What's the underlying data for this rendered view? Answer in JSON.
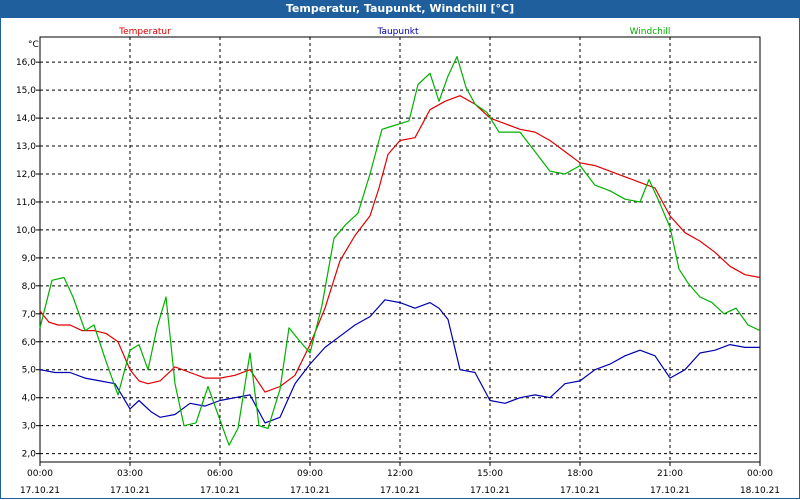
{
  "window": {
    "title": "Temperatur, Taupunkt, Windchill [°C]"
  },
  "chart_data": {
    "type": "line",
    "title": "Temperatur, Taupunkt, Windchill [°C]",
    "ylabel": "°C",
    "ylim": [
      1.7,
      16.9
    ],
    "xlim": [
      0,
      24
    ],
    "yticks": [
      2,
      3,
      4,
      5,
      6,
      7,
      8,
      9,
      10,
      11,
      12,
      13,
      14,
      15,
      16
    ],
    "ytick_labels": [
      "2,0",
      "3,0",
      "4,0",
      "5,0",
      "6,0",
      "7,0",
      "8,0",
      "9,0",
      "10,0",
      "11,0",
      "12,0",
      "13,0",
      "14,0",
      "15,0",
      "16,0"
    ],
    "xticks": [
      0,
      3,
      6,
      9,
      12,
      15,
      18,
      21,
      24
    ],
    "xtick_times": [
      "00:00",
      "03:00",
      "06:00",
      "09:00",
      "12:00",
      "15:00",
      "18:00",
      "21:00",
      "00:00"
    ],
    "xtick_dates": [
      "17.10.21",
      "17.10.21",
      "17.10.21",
      "17.10.21",
      "17.10.21",
      "17.10.21",
      "17.10.21",
      "17.10.21",
      "18.10.21"
    ],
    "grid": true,
    "series": [
      {
        "name": "Temperatur",
        "color": "#e00000",
        "x": [
          0,
          0.3,
          0.6,
          1,
          1.4,
          1.8,
          2.2,
          2.6,
          3,
          3.3,
          3.6,
          4,
          4.5,
          5,
          5.5,
          6,
          6.5,
          7,
          7.5,
          8,
          8.5,
          9,
          9.5,
          10,
          10.5,
          11,
          11.3,
          11.6,
          12,
          12.5,
          13,
          13.5,
          14,
          14.5,
          15,
          15.5,
          16,
          16.5,
          17,
          17.5,
          18,
          18.5,
          19,
          19.5,
          20,
          20.5,
          21,
          21.5,
          22,
          22.5,
          23,
          23.5,
          24
        ],
        "values": [
          7.1,
          6.7,
          6.6,
          6.6,
          6.4,
          6.4,
          6.3,
          6.0,
          5.0,
          4.6,
          4.5,
          4.6,
          5.1,
          4.9,
          4.7,
          4.7,
          4.8,
          5.0,
          4.2,
          4.4,
          4.8,
          5.9,
          7.2,
          8.9,
          9.8,
          10.5,
          11.5,
          12.7,
          13.2,
          13.3,
          14.3,
          14.6,
          14.8,
          14.5,
          14.0,
          13.8,
          13.6,
          13.5,
          13.2,
          12.8,
          12.4,
          12.3,
          12.1,
          11.9,
          11.7,
          11.5,
          10.5,
          9.9,
          9.6,
          9.2,
          8.7,
          8.4,
          8.3
        ]
      },
      {
        "name": "Taupunkt",
        "color": "#0000b0",
        "x": [
          0,
          0.5,
          1,
          1.5,
          2,
          2.5,
          3,
          3.3,
          3.7,
          4,
          4.5,
          5,
          5.5,
          6,
          6.5,
          7,
          7.5,
          8,
          8.5,
          9,
          9.5,
          10,
          10.5,
          11,
          11.5,
          12,
          12.5,
          13,
          13.3,
          13.6,
          14,
          14.5,
          15,
          15.5,
          16,
          16.5,
          17,
          17.5,
          18,
          18.5,
          19,
          19.5,
          20,
          20.5,
          21,
          21.5,
          22,
          22.5,
          23,
          23.5,
          24
        ],
        "values": [
          5.0,
          4.9,
          4.9,
          4.7,
          4.6,
          4.5,
          3.6,
          3.9,
          3.5,
          3.3,
          3.4,
          3.8,
          3.7,
          3.9,
          4.0,
          4.1,
          3.1,
          3.3,
          4.5,
          5.2,
          5.8,
          6.2,
          6.6,
          6.9,
          7.5,
          7.4,
          7.2,
          7.4,
          7.2,
          6.8,
          5.0,
          4.9,
          3.9,
          3.8,
          4.0,
          4.1,
          4.0,
          4.5,
          4.6,
          5.0,
          5.2,
          5.5,
          5.7,
          5.5,
          4.7,
          5.0,
          5.6,
          5.7,
          5.9,
          5.8,
          5.8
        ]
      },
      {
        "name": "Windchill",
        "color": "#00b000",
        "x": [
          0,
          0.4,
          0.8,
          1.1,
          1.5,
          1.8,
          2.2,
          2.6,
          3,
          3.3,
          3.6,
          3.9,
          4.2,
          4.5,
          4.8,
          5.2,
          5.6,
          6,
          6.3,
          6.6,
          7,
          7.3,
          7.6,
          8,
          8.3,
          8.6,
          9,
          9.4,
          9.8,
          10.2,
          10.6,
          11,
          11.4,
          11.7,
          12,
          12.3,
          12.6,
          13,
          13.3,
          13.6,
          13.9,
          14.2,
          14.5,
          14.9,
          15.3,
          15.7,
          16,
          16.5,
          17,
          17.5,
          18,
          18.5,
          19,
          19.5,
          20,
          20.3,
          20.6,
          21,
          21.3,
          21.6,
          22,
          22.4,
          22.8,
          23.2,
          23.6,
          24
        ],
        "values": [
          6.5,
          8.2,
          8.3,
          7.6,
          6.4,
          6.6,
          5.3,
          4.1,
          5.7,
          5.9,
          5.0,
          6.5,
          7.6,
          4.5,
          3.0,
          3.1,
          4.4,
          3.2,
          2.3,
          2.9,
          5.6,
          3.0,
          2.9,
          4.3,
          6.5,
          6.1,
          5.6,
          7.3,
          9.7,
          10.2,
          10.6,
          12.0,
          13.6,
          13.7,
          13.8,
          13.9,
          15.2,
          15.6,
          14.6,
          15.5,
          16.2,
          15.1,
          14.5,
          14.2,
          13.5,
          13.5,
          13.5,
          12.8,
          12.1,
          12.0,
          12.3,
          11.6,
          11.4,
          11.1,
          11.0,
          11.8,
          11.1,
          10.1,
          8.6,
          8.1,
          7.6,
          7.4,
          7.0,
          7.2,
          6.6,
          6.4
        ]
      }
    ]
  }
}
